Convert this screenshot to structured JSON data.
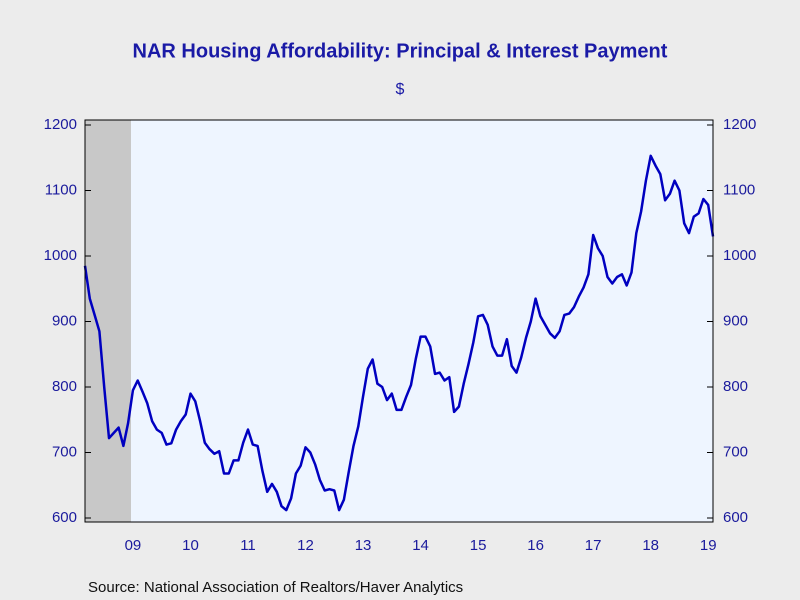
{
  "chart_data": {
    "type": "line",
    "title": "NAR Housing Affordability: Principal & Interest Payment",
    "subtitle": "$",
    "source": "Source:  National Association of Realtors/Haver Analytics",
    "categories": [
      null,
      null,
      null,
      null,
      null,
      null,
      null,
      null,
      null,
      null,
      "09",
      null,
      null,
      null,
      null,
      null,
      null,
      null,
      null,
      null,
      null,
      null,
      "10",
      null,
      null,
      null,
      null,
      null,
      null,
      null,
      null,
      null,
      null,
      null,
      "11",
      null,
      null,
      null,
      null,
      null,
      null,
      null,
      null,
      null,
      null,
      null,
      "12",
      null,
      null,
      null,
      null,
      null,
      null,
      null,
      null,
      null,
      null,
      null,
      "13",
      null,
      null,
      null,
      null,
      null,
      null,
      null,
      null,
      null,
      null,
      null,
      "14",
      null,
      null,
      null,
      null,
      null,
      null,
      null,
      null,
      null,
      null,
      null,
      "15",
      null,
      null,
      null,
      null,
      null,
      null,
      null,
      null,
      null,
      null,
      null,
      "16",
      null,
      null,
      null,
      null,
      null,
      null,
      null,
      null,
      null,
      null,
      null,
      "17",
      null,
      null,
      null,
      null,
      null,
      null,
      null,
      null,
      null,
      null,
      null,
      "18",
      null,
      null,
      null,
      null,
      null,
      null,
      null,
      null,
      null,
      null,
      null,
      "19",
      null
    ],
    "series": [
      {
        "name": "Principal & Interest Payment",
        "color": "#0000c0",
        "values": [
          985,
          935,
          910,
          885,
          800,
          722,
          730,
          738,
          710,
          745,
          795,
          810,
          793,
          775,
          748,
          735,
          730,
          712,
          714,
          735,
          748,
          758,
          790,
          778,
          748,
          715,
          705,
          698,
          702,
          668,
          668,
          688,
          688,
          715,
          735,
          712,
          710,
          672,
          640,
          652,
          640,
          618,
          612,
          630,
          668,
          680,
          708,
          700,
          682,
          658,
          642,
          644,
          642,
          612,
          628,
          670,
          710,
          740,
          785,
          828,
          842,
          805,
          800,
          780,
          790,
          765,
          765,
          785,
          803,
          843,
          877,
          877,
          862,
          820,
          822,
          810,
          815,
          762,
          770,
          805,
          835,
          868,
          908,
          910,
          895,
          862,
          848,
          848,
          873,
          832,
          822,
          845,
          875,
          900,
          935,
          908,
          895,
          882,
          875,
          885,
          910,
          912,
          922,
          938,
          952,
          972,
          1032,
          1012,
          1000,
          968,
          958,
          968,
          972,
          955,
          975,
          1035,
          1068,
          1115,
          1153,
          1138,
          1125,
          1085,
          1095,
          1115,
          1100,
          1050,
          1035,
          1060,
          1065,
          1087,
          1078,
          1030
        ]
      }
    ],
    "ylim": [
      600,
      1200
    ],
    "yticks": [
      600,
      700,
      800,
      900,
      1000,
      1100,
      1200
    ],
    "grid": false
  }
}
